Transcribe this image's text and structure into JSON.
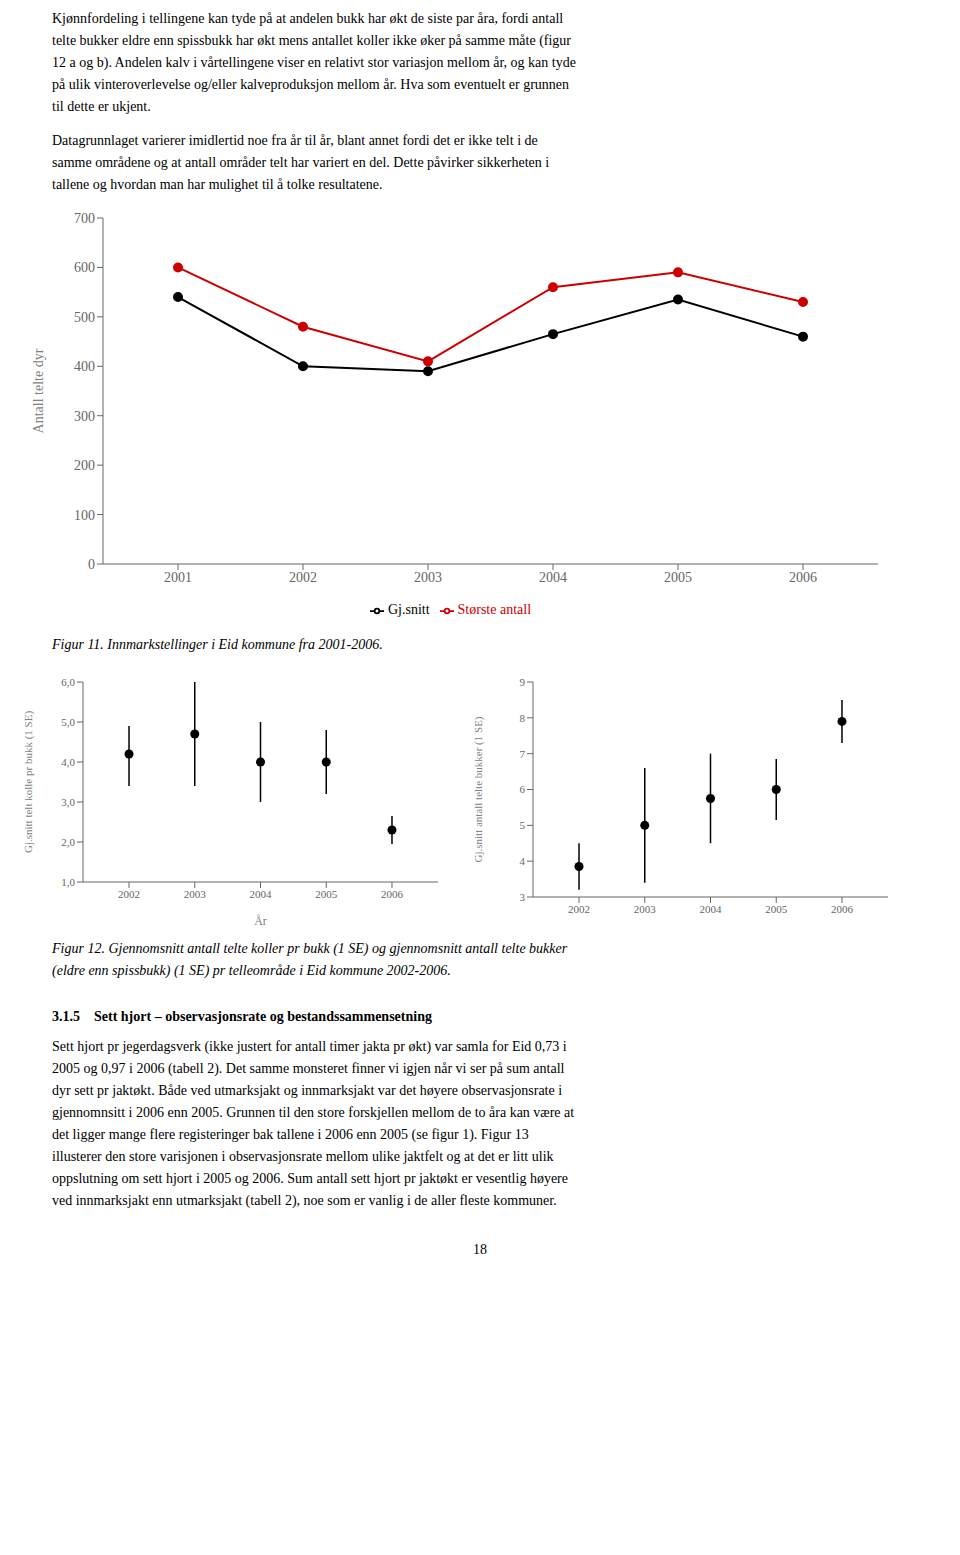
{
  "paragraphs_before": [
    [
      "Kjønnfordeling i tellingene kan tyde på at andelen bukk har økt de siste par åra, fordi antall",
      "telte bukker eldre enn spissbukk har økt mens antallet koller ikke øker på samme måte (figur",
      "12 a og b). Andelen kalv i vårtellingene viser en relativt stor variasjon mellom år, og kan tyde",
      "på ulik vinteroverlevelse og/eller kalveproduksjon mellom år. Hva som eventuelt er grunnen",
      "til dette er ukjent."
    ],
    [
      "Datagrunnlaget varierer imidlertid noe fra år til år, blant annet fordi det er ikke telt i de",
      "samme områdene og at antall områder telt har variert en del. Dette påvirker sikkerheten i",
      "tallene og hvordan man har mulighet til å tolke resultatene."
    ]
  ],
  "chart_data": [
    {
      "type": "line",
      "x": [
        2001,
        2002,
        2003,
        2004,
        2005,
        2006
      ],
      "xlim": [
        2000.4,
        2006.6
      ],
      "xticks": [
        2001,
        2002,
        2003,
        2004,
        2005,
        2006
      ],
      "ylim": [
        0,
        700
      ],
      "yticks": [
        0,
        100,
        200,
        300,
        400,
        500,
        600,
        700
      ],
      "ylabel": "Antall telte dyr",
      "grid": false,
      "legend": "bottom",
      "series": [
        {
          "name": "Største antall",
          "color": "#cc0000",
          "marker": "o",
          "line_style": "solid",
          "values": [
            600,
            480,
            410,
            560,
            590,
            530
          ]
        },
        {
          "name": "Gj.snitt",
          "color": "#000000",
          "marker": "o",
          "line_style": "solid",
          "values": [
            540,
            400,
            390,
            465,
            535,
            460
          ]
        }
      ],
      "caption": [
        "Figur 11. Innmarkstellinger i Eid kommune fra 2001-2006."
      ]
    },
    {
      "type": "errorbar",
      "x": [
        2002,
        2003,
        2004,
        2005,
        2006
      ],
      "xlim": [
        2001.3,
        2006.7
      ],
      "xticks": [
        2002,
        2003,
        2004,
        2005,
        2006
      ],
      "ylim": [
        1.0,
        6.0
      ],
      "yticks": [
        {
          "value": 1.0,
          "label": "1,0"
        },
        {
          "value": 2.0,
          "label": "2,0"
        },
        {
          "value": 3.0,
          "label": "3,0"
        },
        {
          "value": 4.0,
          "label": "4,0"
        },
        {
          "value": 5.0,
          "label": "5,0"
        },
        {
          "value": 6.0,
          "label": "6,0"
        }
      ],
      "xlabel": "År",
      "ylabel": "Gj.snitt telt kolle pr bukk (1 SE)",
      "grid": false,
      "color": "#000000",
      "marker": "o",
      "values": [
        4.2,
        4.7,
        4.0,
        4.0,
        2.3
      ],
      "upper": [
        4.9,
        6.0,
        5.0,
        4.8,
        2.65
      ],
      "lower": [
        3.4,
        3.4,
        3.0,
        3.2,
        1.95
      ]
    },
    {
      "type": "errorbar",
      "x": [
        2002,
        2003,
        2004,
        2005,
        2006
      ],
      "xlim": [
        2001.3,
        2006.7
      ],
      "xticks": [
        2002,
        2003,
        2004,
        2005,
        2006
      ],
      "ylim": [
        3,
        9
      ],
      "yticks": [
        3,
        4,
        5,
        6,
        7,
        8,
        9
      ],
      "ylabel": "Gj.snitt antall telte bukker (1 SE)",
      "grid": false,
      "color": "#000000",
      "marker": "o",
      "values": [
        3.85,
        5.0,
        5.75,
        6.0,
        7.9
      ],
      "upper": [
        4.5,
        6.6,
        7.0,
        6.85,
        8.5
      ],
      "lower": [
        3.2,
        3.4,
        4.5,
        5.15,
        7.3
      ],
      "caption": [
        "Figur 12. Gjennomsnitt antall telte koller pr bukk (1 SE) og gjennomsnitt antall telte bukker",
        "(eldre enn spissbukk) (1 SE) pr telleområde i Eid kommune 2002-2006."
      ]
    }
  ],
  "section_heading": "3.1.5    Sett hjort – observasjonsrate og bestandssammensetning",
  "section_text": [
    "Sett hjort pr jegerdagsverk (ikke justert for antall timer jakta pr økt) var samla for Eid 0,73 i",
    "2005 og 0,97 i 2006 (tabell 2). Det samme monsteret finner vi igjen når vi ser på sum antall",
    "dyr sett pr jaktøkt. Både ved utmarksjakt og innmarksjakt var det høyere observasjonsrate i",
    "gjennomnsitt i 2006 enn 2005. Grunnen til den store forskjellen mellom de to åra kan være at",
    "det ligger mange flere registeringer bak tallene i 2006 enn 2005 (se figur 1). Figur 13",
    "illusterer den store varisjonen i observasjonsrate mellom ulike jaktfelt og at det er litt ulik",
    "oppslutning om sett hjort i 2005 og 2006. Sum antall sett hjort pr jaktøkt er vesentlig høyere",
    "ved innmarksjakt enn utmarksjakt (tabell 2), noe som er vanlig i de aller fleste kommuner."
  ],
  "page_number": "18"
}
